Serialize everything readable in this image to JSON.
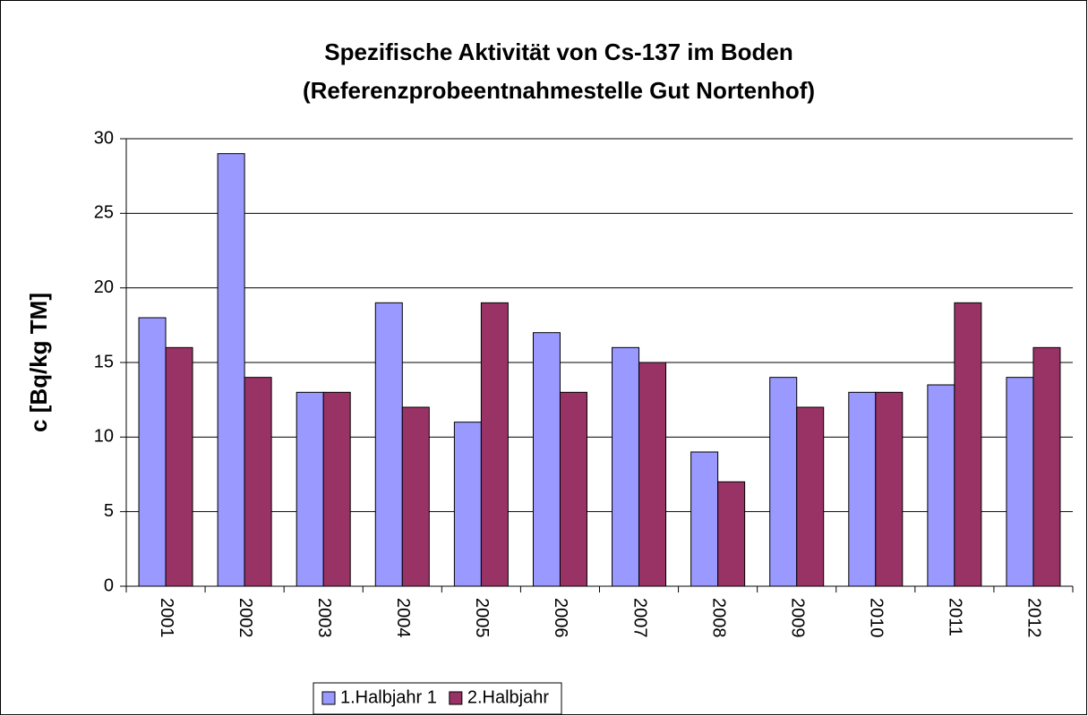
{
  "chart_data": {
    "type": "bar",
    "title": [
      "Spezifische Aktivität von Cs-137 im Boden",
      "(Referenzprobeentnahmestelle Gut Nortenhof)"
    ],
    "y_label": "c [Bq/kg TM]",
    "categories": [
      "2001",
      "2002",
      "2003",
      "2004",
      "2005",
      "2006",
      "2007",
      "2008",
      "2009",
      "2010",
      "2011",
      "2012"
    ],
    "series": [
      {
        "name": "1.Halbjahr 1",
        "color": "#9999ff",
        "values": [
          18,
          29,
          13,
          19,
          11,
          17,
          16,
          9,
          14,
          13,
          13.5,
          14
        ]
      },
      {
        "name": "2.Halbjahr",
        "color": "#993366",
        "values": [
          16,
          14,
          13,
          12,
          19,
          13,
          15,
          7,
          12,
          13,
          19,
          16
        ]
      }
    ],
    "ylim": [
      0,
      30
    ],
    "yticks": [
      0,
      5,
      10,
      15,
      20,
      25,
      30
    ],
    "grid": true,
    "legend": "bottom"
  }
}
